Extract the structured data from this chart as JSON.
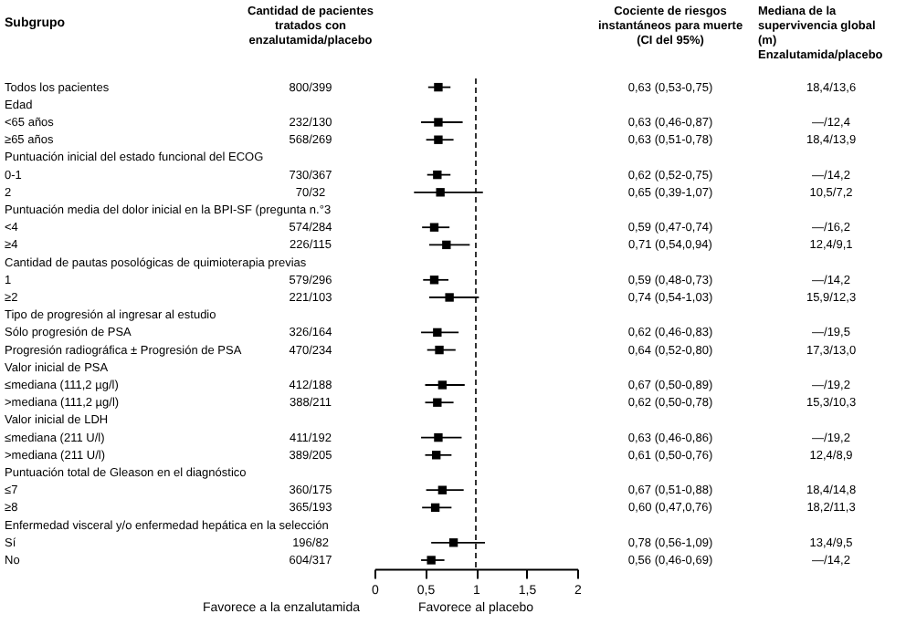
{
  "chart_data": {
    "type": "scatter",
    "orientation": "horizontal",
    "ylabel": "Subgrupo",
    "categories": [
      "Todos los pacientes",
      "Edad",
      "<65 años",
      "≥65 años",
      "Puntuación inicial del estado funcional del ECOG",
      "0-1",
      "2",
      "Puntuación media del dolor inicial en la BPI-SF (pregunta n.°3",
      "<4",
      "≥4",
      "Cantidad de pautas posológicas de quimioterapia previas",
      "1",
      "≥2",
      "Tipo de progresión al ingresar al estudio",
      "Sólo progresión de PSA",
      "Progresión radiográfica ± Progresión de PSA",
      "Valor inicial de PSA",
      "≤mediana (111,2 µg/l)",
      ">mediana (111,2 µg/l)",
      "Valor inicial de LDH",
      "≤mediana (211 U/l)",
      ">mediana (211 U/l)",
      "Puntuación total de Gleason en el diagnóstico",
      "≤7",
      "≥8",
      "Enfermedad visceral y/o enfermedad hepática en la selección",
      "Sí",
      "No"
    ],
    "values": [
      0.63,
      null,
      0.63,
      0.63,
      null,
      0.62,
      0.65,
      null,
      0.59,
      0.71,
      null,
      0.59,
      0.74,
      null,
      0.62,
      0.64,
      null,
      0.67,
      0.62,
      null,
      0.63,
      0.61,
      null,
      0.67,
      0.6,
      null,
      0.78,
      0.56
    ],
    "errors": [
      [
        0.53,
        0.75
      ],
      null,
      [
        0.46,
        0.87
      ],
      [
        0.51,
        0.78
      ],
      null,
      [
        0.52,
        0.75
      ],
      [
        0.39,
        1.07
      ],
      null,
      [
        0.47,
        0.74
      ],
      [
        0.54,
        0.94
      ],
      null,
      [
        0.48,
        0.73
      ],
      [
        0.54,
        1.03
      ],
      null,
      [
        0.46,
        0.83
      ],
      [
        0.52,
        0.8
      ],
      null,
      [
        0.5,
        0.89
      ],
      [
        0.5,
        0.78
      ],
      null,
      [
        0.46,
        0.86
      ],
      [
        0.5,
        0.76
      ],
      null,
      [
        0.51,
        0.88
      ],
      [
        0.47,
        0.76
      ],
      null,
      [
        0.56,
        1.09
      ],
      [
        0.46,
        0.69
      ]
    ],
    "value_labels": [
      "0,63 (0,53-0,75)",
      null,
      "0,63 (0,46-0,87)",
      "0,63 (0,51-0,78)",
      null,
      "0,62 (0,52-0,75)",
      "0,65 (0,39-1,07)",
      null,
      "0,59 (0,47-0,74)",
      "0,71 (0,54,0,94)",
      null,
      "0,59 (0,48-0,73)",
      "0,74 (0,54-1,03)",
      null,
      "0,62 (0,46-0,83)",
      "0,64 (0,52-0,80)",
      null,
      "0,67 (0,50-0,89)",
      "0,62 (0,50-0,78)",
      null,
      "0,63 (0,46-0,86)",
      "0,61 (0,50-0,76)",
      null,
      "0,67 (0,51-0,88)",
      "0,60 (0,47,0,76)",
      null,
      "0,78 (0,56-1,09)",
      "0,56 (0,46-0,69)"
    ],
    "color": "#000000",
    "marker": "square",
    "xlim": [
      0,
      2
    ],
    "xticks": [
      0,
      {
        "value": 0.5,
        "label": "0,5"
      },
      1,
      {
        "value": 1.5,
        "label": "1,5"
      },
      2
    ],
    "ref_lines": [
      {
        "axis": "x",
        "value": 1,
        "line_style": "dashed",
        "color": "#000000"
      }
    ],
    "annotations": [
      "Cantidad de pacientes tratados con enzalutamida/placebo",
      "Cociente de riesgos instantáneos para muerte (CI del 95%)",
      "Mediana de la supervivencia global (m) Enzalutamida/placebo",
      "Favorece a la enzalutamida",
      "Favorece al placebo",
      "800/399",
      "18,4/13,6",
      "232/130",
      "—/12,4",
      "568/269",
      "18,4/13,9",
      "730/367",
      "—/14,2",
      "70/32",
      "10,5/7,2",
      "574/284",
      "—/16,2",
      "226/115",
      "12,4/9,1",
      "579/296",
      "—/14,2",
      "221/103",
      "15,9/12,3",
      "326/164",
      "—/19,5",
      "470/234",
      "17,3/13,0",
      "412/188",
      "—/19,2",
      "388/211",
      "15,3/10,3",
      "411/192",
      "—/19,2",
      "389/205",
      "12,4/8,9",
      "360/175",
      "18,4/14,8",
      "365/193",
      "18,2/11,3",
      "196/82",
      "13,4/9,5",
      "604/317",
      "—/14,2"
    ]
  }
}
